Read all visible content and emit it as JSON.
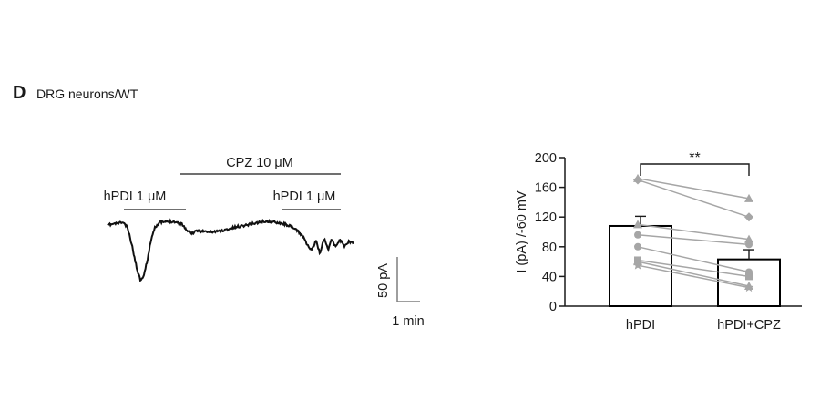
{
  "panel": {
    "letter": "D",
    "title": "DRG neurons/WT"
  },
  "trace": {
    "cpz_label": "CPZ 10 μM",
    "hpdi_label_1": "hPDI 1 μM",
    "hpdi_label_2": "hPDI 1 μM",
    "scale_y_label": "50 pA",
    "scale_x_label": "1 min"
  },
  "chart_data": {
    "type": "bar",
    "categories": [
      "hPDI",
      "hPDI+CPZ"
    ],
    "values": [
      108,
      63
    ],
    "errors": [
      13,
      13
    ],
    "ylabel": "I (pA) /-60 mV",
    "xlabel": "",
    "ylim": [
      0,
      200
    ],
    "yticks": [
      0,
      40,
      80,
      120,
      160,
      200
    ],
    "significance": "**",
    "paired": [
      {
        "before": 172,
        "after": 145,
        "marker": "triangle"
      },
      {
        "before": 170,
        "after": 120,
        "marker": "diamond"
      },
      {
        "before": 110,
        "after": 90,
        "marker": "triangle"
      },
      {
        "before": 96,
        "after": 83,
        "marker": "circle"
      },
      {
        "before": 80,
        "after": 46,
        "marker": "circle"
      },
      {
        "before": 62,
        "after": 40,
        "marker": "square"
      },
      {
        "before": 60,
        "after": 27,
        "marker": "triangle"
      },
      {
        "before": 55,
        "after": 25,
        "marker": "star"
      }
    ],
    "colors": {
      "bar_fill": "#ffffff",
      "bar_stroke": "#000000",
      "points": "#a6a6a6"
    }
  }
}
